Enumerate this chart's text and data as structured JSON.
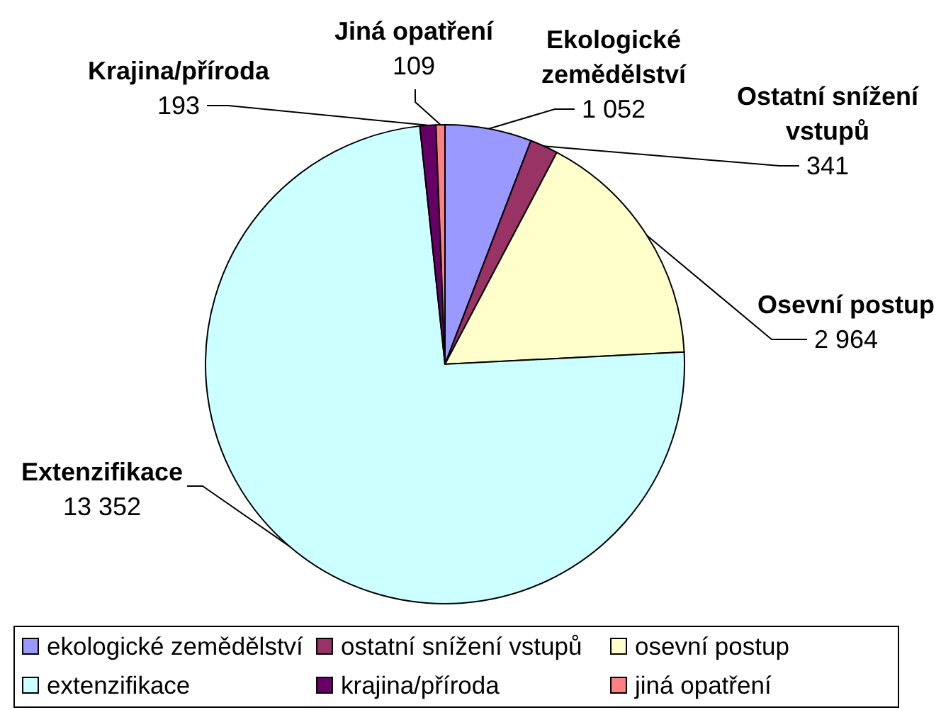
{
  "chart_data": {
    "type": "pie",
    "categories": [
      "ekologické zemědělství",
      "ostatní snížení vstupů",
      "osevní postup",
      "extenzifikace",
      "krajina/příroda",
      "jiná opatření"
    ],
    "values": [
      1052,
      341,
      2964,
      13352,
      193,
      109
    ],
    "colors": [
      "#9999ff",
      "#993366",
      "#ffffcc",
      "#ccffff",
      "#660066",
      "#ff8080"
    ],
    "annotations": [
      "Ekologické zemědělství",
      "Ostatní snížení vstupů",
      "Osevní postup",
      "Extenzifikace",
      "Krajina/příroda",
      "Jiná opatření"
    ],
    "value_labels": [
      "1 052",
      "341",
      "2 964",
      "13 352",
      "193",
      "109"
    ],
    "legend": "bottom"
  }
}
